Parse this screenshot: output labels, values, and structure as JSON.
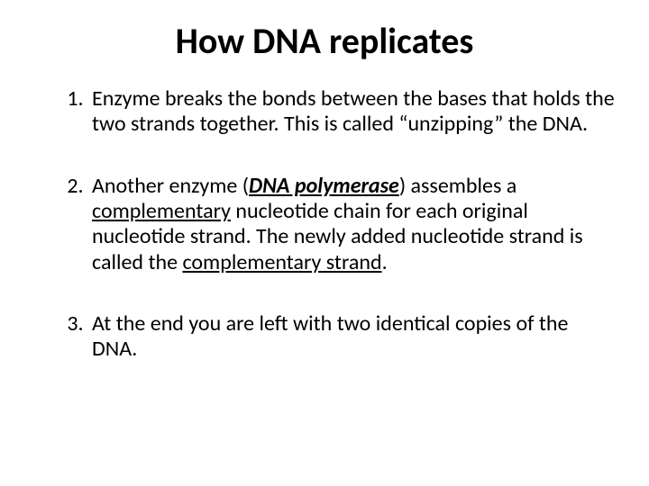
{
  "title": "How DNA replicates",
  "steps": {
    "s1": {
      "a": "Enzyme breaks the bonds between the bases that holds the two strands together.  This is called “unzipping” the DNA."
    },
    "s2": {
      "a": "Another enzyme (",
      "poly": "DNA polymerase",
      "b": ") assembles a ",
      "comp": "complementary",
      "c": " nucleotide chain for each original nucleotide strand.  The newly added nucleotide strand is called the ",
      "cstrand": "complementary strand",
      "d": "."
    },
    "s3": {
      "a": "At the end you are left with two identical copies of the DNA."
    }
  },
  "colors": {
    "background": "#ffffff",
    "text": "#000000"
  },
  "typography": {
    "title_fontsize": 40,
    "title_weight": 700,
    "body_fontsize": 24,
    "body_lineheight": 1.18,
    "font_family": "Calibri"
  }
}
